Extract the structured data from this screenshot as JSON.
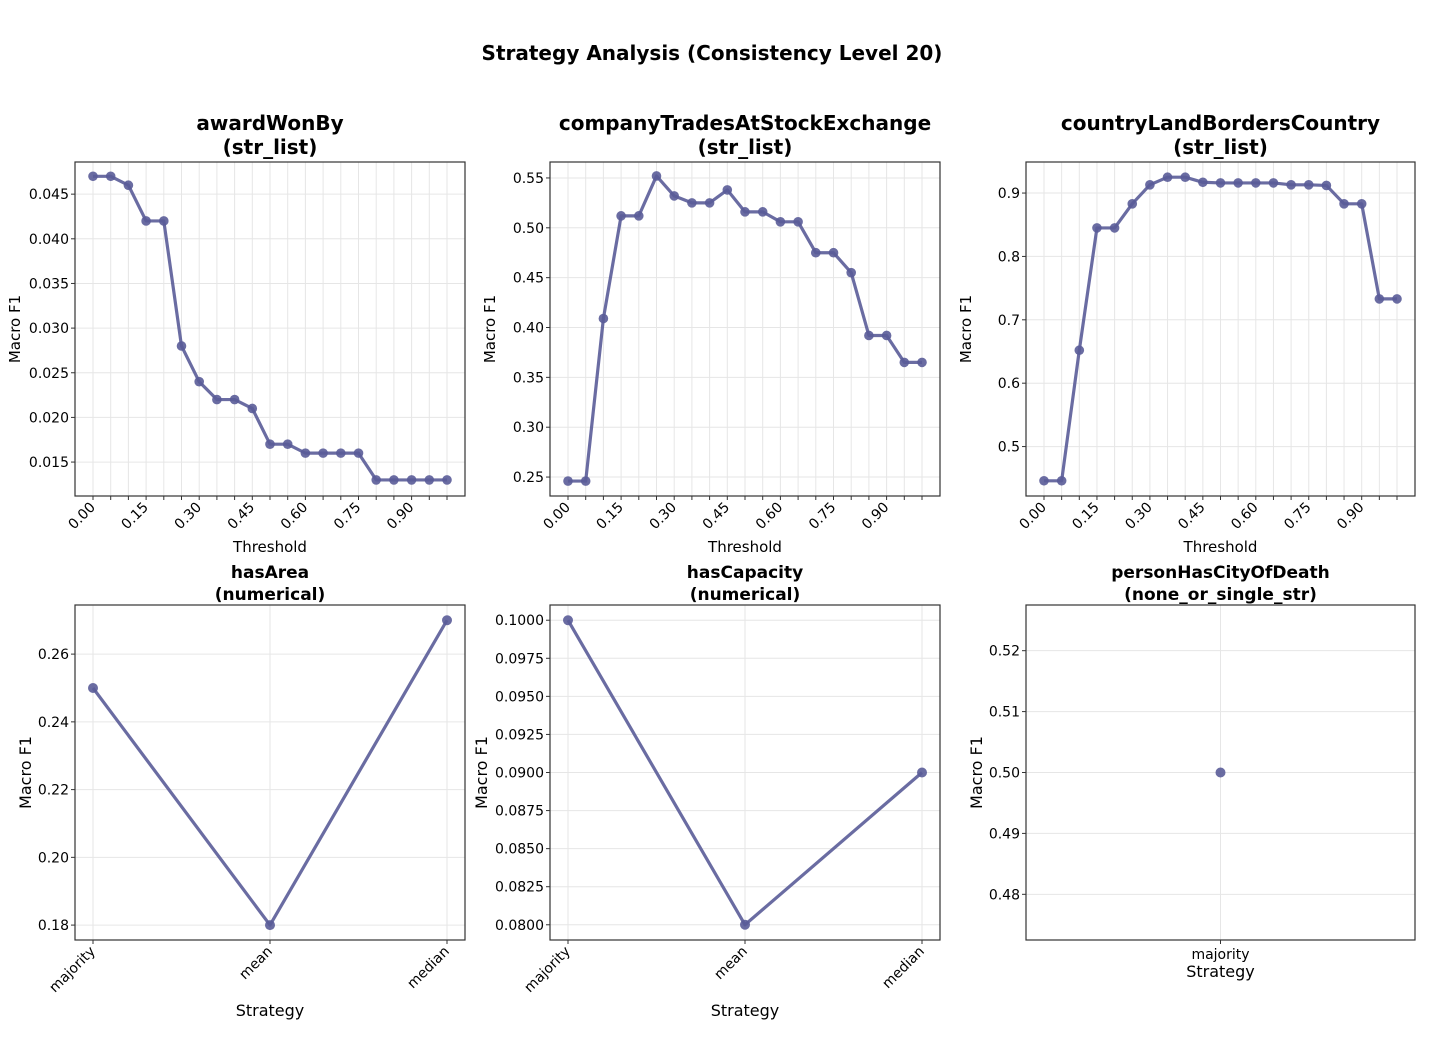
{
  "title": "Strategy Analysis (Consistency Level 20)",
  "style": {
    "line_color": "#5a5c98",
    "grid_color": "#e6e6e6",
    "axes_color": "#333333"
  },
  "chart_data": [
    {
      "type": "line",
      "title": "awardWonBy",
      "subtitle": "(str_list)",
      "xlabel": "Threshold",
      "ylabel": "Macro F1",
      "x": [
        0.0,
        0.05,
        0.1,
        0.15,
        0.2,
        0.25,
        0.3,
        0.35,
        0.4,
        0.45,
        0.5,
        0.55,
        0.6,
        0.65,
        0.7,
        0.75,
        0.8,
        0.85,
        0.9,
        0.95,
        1.0
      ],
      "x_tick_labels": [
        "0.00",
        "",
        "",
        "0.15",
        "",
        "",
        "0.30",
        "",
        "",
        "0.45",
        "",
        "",
        "0.60",
        "",
        "",
        "0.75",
        "",
        "",
        "0.90",
        "",
        ""
      ],
      "values": [
        0.047,
        0.047,
        0.046,
        0.042,
        0.042,
        0.028,
        0.024,
        0.022,
        0.022,
        0.021,
        0.017,
        0.017,
        0.016,
        0.016,
        0.016,
        0.016,
        0.013,
        0.013,
        0.013,
        0.013,
        0.013
      ],
      "ylim": [
        0.0112,
        0.0486
      ],
      "y_ticks": [
        0.015,
        0.02,
        0.025,
        0.03,
        0.035,
        0.04,
        0.045
      ],
      "y_tick_labels": [
        "0.015",
        "0.020",
        "0.025",
        "0.030",
        "0.035",
        "0.040",
        "0.045"
      ],
      "grid": true
    },
    {
      "type": "line",
      "title": "companyTradesAtStockExchange",
      "subtitle": "(str_list)",
      "xlabel": "Threshold",
      "ylabel": "Macro F1",
      "x": [
        0.0,
        0.05,
        0.1,
        0.15,
        0.2,
        0.25,
        0.3,
        0.35,
        0.4,
        0.45,
        0.5,
        0.55,
        0.6,
        0.65,
        0.7,
        0.75,
        0.8,
        0.85,
        0.9,
        0.95,
        1.0
      ],
      "x_tick_labels": [
        "0.00",
        "",
        "",
        "0.15",
        "",
        "",
        "0.30",
        "",
        "",
        "0.45",
        "",
        "",
        "0.60",
        "",
        "",
        "0.75",
        "",
        "",
        "0.90",
        "",
        ""
      ],
      "values": [
        0.246,
        0.246,
        0.409,
        0.512,
        0.512,
        0.552,
        0.532,
        0.525,
        0.525,
        0.538,
        0.516,
        0.516,
        0.506,
        0.506,
        0.475,
        0.475,
        0.455,
        0.392,
        0.392,
        0.365,
        0.365
      ],
      "ylim": [
        0.231,
        0.566
      ],
      "y_ticks": [
        0.25,
        0.3,
        0.35,
        0.4,
        0.45,
        0.5,
        0.55
      ],
      "y_tick_labels": [
        "0.25",
        "0.30",
        "0.35",
        "0.40",
        "0.45",
        "0.50",
        "0.55"
      ],
      "grid": true
    },
    {
      "type": "line",
      "title": "countryLandBordersCountry",
      "subtitle": "(str_list)",
      "xlabel": "Threshold",
      "ylabel": "Macro F1",
      "x": [
        0.0,
        0.05,
        0.1,
        0.15,
        0.2,
        0.25,
        0.3,
        0.35,
        0.4,
        0.45,
        0.5,
        0.55,
        0.6,
        0.65,
        0.7,
        0.75,
        0.8,
        0.85,
        0.9,
        0.95,
        1.0
      ],
      "x_tick_labels": [
        "0.00",
        "",
        "",
        "0.15",
        "",
        "",
        "0.30",
        "",
        "",
        "0.45",
        "",
        "",
        "0.60",
        "",
        "",
        "0.75",
        "",
        "",
        "0.90",
        "",
        ""
      ],
      "values": [
        0.446,
        0.446,
        0.652,
        0.845,
        0.845,
        0.883,
        0.913,
        0.925,
        0.925,
        0.917,
        0.916,
        0.916,
        0.916,
        0.916,
        0.913,
        0.913,
        0.912,
        0.883,
        0.883,
        0.733,
        0.733
      ],
      "ylim": [
        0.422,
        0.949
      ],
      "y_ticks": [
        0.5,
        0.6,
        0.7,
        0.8,
        0.9
      ],
      "y_tick_labels": [
        "0.5",
        "0.6",
        "0.7",
        "0.8",
        "0.9"
      ],
      "grid": true
    },
    {
      "type": "line",
      "title": "hasArea",
      "subtitle": "(numerical)",
      "xlabel": "Strategy",
      "ylabel": "Macro F1",
      "categories": [
        "majority",
        "mean",
        "median"
      ],
      "values": [
        0.25,
        0.18,
        0.27
      ],
      "ylim": [
        0.1756,
        0.2745
      ],
      "y_ticks": [
        0.18,
        0.2,
        0.22,
        0.24,
        0.26
      ],
      "y_tick_labels": [
        "0.18",
        "0.20",
        "0.22",
        "0.24",
        "0.26"
      ],
      "grid": true
    },
    {
      "type": "line",
      "title": "hasCapacity",
      "subtitle": "(numerical)",
      "xlabel": "Strategy",
      "ylabel": "Macro F1",
      "categories": [
        "majority",
        "mean",
        "median"
      ],
      "values": [
        0.1,
        0.08,
        0.09
      ],
      "ylim": [
        0.079,
        0.101
      ],
      "y_ticks": [
        0.08,
        0.0825,
        0.085,
        0.0875,
        0.09,
        0.0925,
        0.095,
        0.0975,
        0.1
      ],
      "y_tick_labels": [
        "0.0800",
        "0.0825",
        "0.0850",
        "0.0875",
        "0.0900",
        "0.0925",
        "0.0950",
        "0.0975",
        "0.1000"
      ],
      "grid": true
    },
    {
      "type": "scatter",
      "title": "personHasCityOfDeath",
      "subtitle": "(none_or_single_str)",
      "xlabel": "Strategy",
      "ylabel": "Macro F1",
      "categories": [
        "majority"
      ],
      "values": [
        0.5
      ],
      "ylim": [
        0.4725,
        0.5275
      ],
      "y_ticks": [
        0.48,
        0.49,
        0.5,
        0.51,
        0.52
      ],
      "y_tick_labels": [
        "0.48",
        "0.49",
        "0.50",
        "0.51",
        "0.52"
      ],
      "grid": true
    }
  ]
}
